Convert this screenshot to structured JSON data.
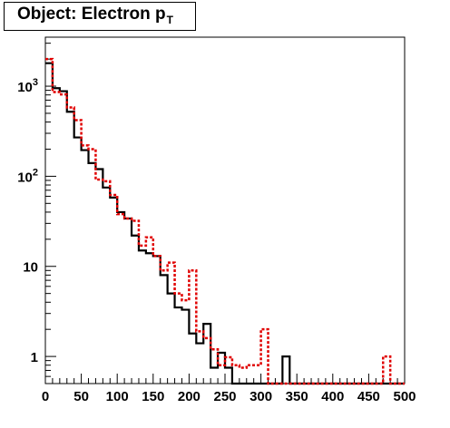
{
  "chart_data": {
    "type": "histogram",
    "title": "Object: Electron p",
    "title_subscript": "T",
    "xlabel": "",
    "ylabel": "",
    "xlim": [
      0,
      500
    ],
    "y_scale": "log",
    "ylim": [
      0.5,
      3500
    ],
    "bin_width": 10,
    "x_ticks": [
      "0",
      "50",
      "100",
      "150",
      "200",
      "250",
      "300",
      "350",
      "400",
      "450",
      "500"
    ],
    "y_ticks": [
      {
        "value": 1000,
        "base": "10",
        "exp": "3"
      },
      {
        "value": 100,
        "base": "10",
        "exp": "2"
      },
      {
        "value": 10,
        "base": "10",
        "exp": ""
      },
      {
        "value": 1,
        "base": "1",
        "exp": ""
      }
    ],
    "series": [
      {
        "style": "solid",
        "color": "#000000",
        "values": [
          1800,
          950,
          880,
          520,
          270,
          195,
          140,
          120,
          75,
          58,
          40,
          34,
          22,
          15,
          14,
          13,
          8,
          5,
          3.5,
          3.3,
          1.8,
          1.4,
          2.3,
          0.75,
          1.1,
          0.75,
          0,
          0,
          0,
          0,
          0,
          0,
          0,
          1.0,
          0,
          0,
          0,
          0,
          0,
          0,
          0,
          0,
          0,
          0,
          0,
          0,
          0,
          0,
          0,
          0
        ]
      },
      {
        "style": "dashed",
        "color": "#e00000",
        "values": [
          2000,
          860,
          810,
          580,
          420,
          220,
          200,
          92,
          88,
          62,
          38,
          34,
          32,
          17,
          21,
          13,
          9,
          11,
          5,
          4.2,
          9,
          1.9,
          1.6,
          1.2,
          0.8,
          0.98,
          0.8,
          0.75,
          0.8,
          0.8,
          2.0,
          0,
          0,
          0,
          0,
          0,
          0,
          0,
          0,
          0,
          0,
          0,
          0,
          0,
          0,
          0,
          0,
          1.0,
          0,
          0
        ]
      }
    ]
  }
}
